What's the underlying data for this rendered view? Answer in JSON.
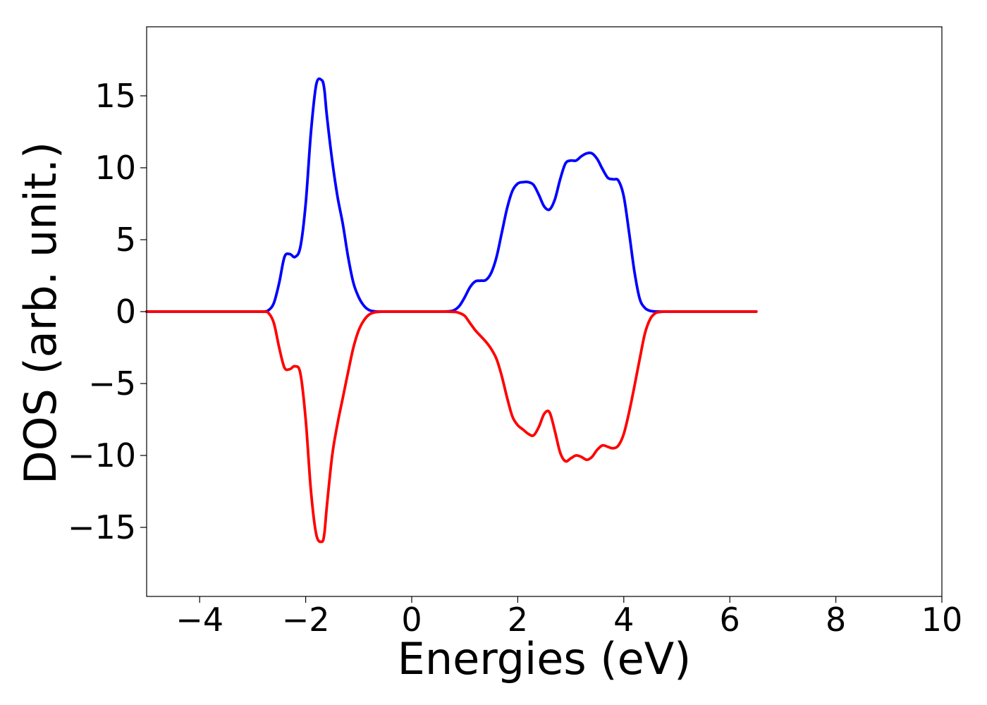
{
  "chart_data": {
    "type": "line",
    "title": "",
    "xlabel": "Energies (eV)",
    "ylabel": "DOS (arb. unit.)",
    "xlim": [
      -5,
      10
    ],
    "ylim": [
      -19.8,
      19.8
    ],
    "xticks": [
      -4,
      -2,
      0,
      2,
      4,
      6,
      8,
      10
    ],
    "xtick_labels": [
      "−4",
      "−2",
      "0",
      "2",
      "4",
      "6",
      "8",
      "10"
    ],
    "yticks": [
      15,
      10,
      5,
      0,
      -5,
      -10,
      -15
    ],
    "ytick_labels": [
      "15",
      "10",
      "5",
      "0",
      "−5",
      "−10",
      "−15"
    ],
    "grid": false,
    "legend": "none",
    "series": [
      {
        "color": "#0000ff",
        "x": [
          -5.0,
          -3.0,
          -2.8,
          -2.7,
          -2.6,
          -2.5,
          -2.4,
          -2.3,
          -2.2,
          -2.1,
          -2.0,
          -1.9,
          -1.8,
          -1.7,
          -1.65,
          -1.6,
          -1.5,
          -1.4,
          -1.3,
          -1.2,
          -1.1,
          -1.0,
          -0.9,
          -0.8,
          -0.7,
          -0.6,
          -0.5,
          0.0,
          0.5,
          0.7,
          0.8,
          0.9,
          1.0,
          1.1,
          1.2,
          1.3,
          1.4,
          1.5,
          1.6,
          1.7,
          1.8,
          1.9,
          2.0,
          2.1,
          2.2,
          2.3,
          2.4,
          2.5,
          2.6,
          2.7,
          2.8,
          2.9,
          3.0,
          3.1,
          3.2,
          3.3,
          3.4,
          3.5,
          3.6,
          3.7,
          3.8,
          3.9,
          4.0,
          4.1,
          4.2,
          4.3,
          4.4,
          4.5,
          4.6,
          4.7,
          5.0,
          6.5
        ],
        "y": [
          0.0,
          0.0,
          0.0,
          0.1,
          0.6,
          2.0,
          3.8,
          4.0,
          3.8,
          4.5,
          7.5,
          12.5,
          15.8,
          16.1,
          15.5,
          13.6,
          10.5,
          8.0,
          6.1,
          3.8,
          2.0,
          1.0,
          0.4,
          0.1,
          0.02,
          0.0,
          0.0,
          0.0,
          0.0,
          0.02,
          0.1,
          0.4,
          1.0,
          1.7,
          2.1,
          2.15,
          2.2,
          2.7,
          3.8,
          5.5,
          7.2,
          8.4,
          8.9,
          9.0,
          9.0,
          8.8,
          8.1,
          7.3,
          7.1,
          7.8,
          9.2,
          10.3,
          10.5,
          10.5,
          10.8,
          11.0,
          11.0,
          10.6,
          9.9,
          9.3,
          9.2,
          9.1,
          8.0,
          5.5,
          2.8,
          0.9,
          0.25,
          0.05,
          0.01,
          0.0,
          0.0,
          0.0
        ]
      },
      {
        "color": "#ff0000",
        "x": [
          -5.0,
          -3.0,
          -2.8,
          -2.7,
          -2.6,
          -2.5,
          -2.4,
          -2.3,
          -2.2,
          -2.1,
          -2.0,
          -1.9,
          -1.8,
          -1.7,
          -1.65,
          -1.6,
          -1.5,
          -1.4,
          -1.3,
          -1.2,
          -1.1,
          -1.0,
          -0.9,
          -0.8,
          -0.7,
          -0.6,
          -0.5,
          0.0,
          0.5,
          0.8,
          0.9,
          1.0,
          1.1,
          1.2,
          1.3,
          1.4,
          1.5,
          1.6,
          1.7,
          1.8,
          1.9,
          2.0,
          2.1,
          2.2,
          2.3,
          2.4,
          2.5,
          2.6,
          2.7,
          2.8,
          2.9,
          3.0,
          3.1,
          3.2,
          3.3,
          3.4,
          3.5,
          3.6,
          3.7,
          3.8,
          3.9,
          4.0,
          4.1,
          4.2,
          4.3,
          4.4,
          4.5,
          4.6,
          4.7,
          4.8,
          5.0,
          6.5
        ],
        "y": [
          0.0,
          0.0,
          0.0,
          -0.1,
          -0.8,
          -2.5,
          -3.9,
          -4.0,
          -3.8,
          -4.3,
          -7.5,
          -12.5,
          -15.5,
          -16.0,
          -15.5,
          -13.5,
          -10.0,
          -7.8,
          -6.0,
          -4.2,
          -2.5,
          -1.3,
          -0.6,
          -0.2,
          -0.05,
          -0.01,
          0.0,
          0.0,
          0.0,
          -0.02,
          -0.1,
          -0.3,
          -0.8,
          -1.3,
          -1.7,
          -2.1,
          -2.6,
          -3.3,
          -4.5,
          -6.0,
          -7.3,
          -7.9,
          -8.2,
          -8.5,
          -8.6,
          -8.0,
          -7.1,
          -7.0,
          -8.3,
          -9.8,
          -10.4,
          -10.2,
          -10.0,
          -10.1,
          -10.3,
          -10.1,
          -9.6,
          -9.3,
          -9.4,
          -9.5,
          -9.3,
          -8.5,
          -7.0,
          -5.2,
          -3.3,
          -1.5,
          -0.5,
          -0.1,
          -0.02,
          0.0,
          0.0,
          0.0
        ]
      }
    ]
  }
}
